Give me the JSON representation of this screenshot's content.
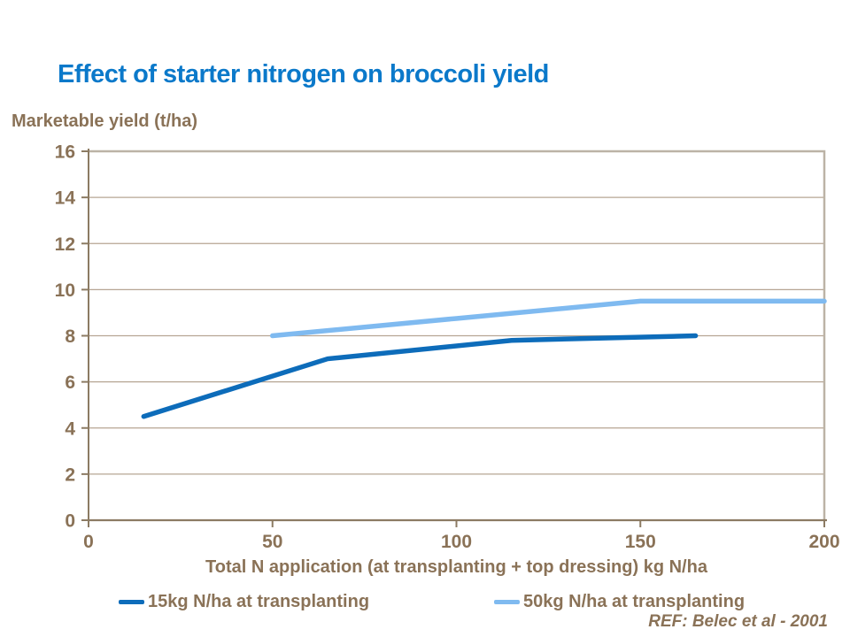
{
  "title": "Effect of starter nitrogen on broccoli yield",
  "ref_note": "REF: Belec et al - 2001",
  "colors": {
    "background": "#ffffff",
    "title_blue": "#0b79ca",
    "text_brown": "#8a7257",
    "grid": "#b6a593",
    "axis": "#8c7b63",
    "plot_border": "#bcb3a6",
    "series_dark": "#0d6cba",
    "series_light": "#7fbaf0"
  },
  "chart_data": {
    "type": "line",
    "title": "Effect of starter nitrogen on broccoli yield",
    "xlabel": "Total N application (at transplanting + top dressing) kg N/ha",
    "ylabel": "Marketable yield (t/ha)",
    "xlim": [
      0,
      200
    ],
    "ylim": [
      0,
      16
    ],
    "x_ticks": [
      0,
      50,
      100,
      150,
      200
    ],
    "y_ticks": [
      0,
      2,
      4,
      6,
      8,
      10,
      12,
      14,
      16
    ],
    "grid": "horizontal gridlines at every y tick",
    "legend_position": "bottom",
    "series": [
      {
        "name": "15kg N/ha at transplanting",
        "color_key": "series_dark",
        "x": [
          15,
          65,
          115,
          165
        ],
        "y": [
          4.5,
          7.0,
          7.8,
          8.0
        ]
      },
      {
        "name": "50kg N/ha at transplanting",
        "color_key": "series_light",
        "x": [
          50,
          100,
          150,
          200
        ],
        "y": [
          8.0,
          8.75,
          9.5,
          9.5
        ]
      }
    ]
  }
}
